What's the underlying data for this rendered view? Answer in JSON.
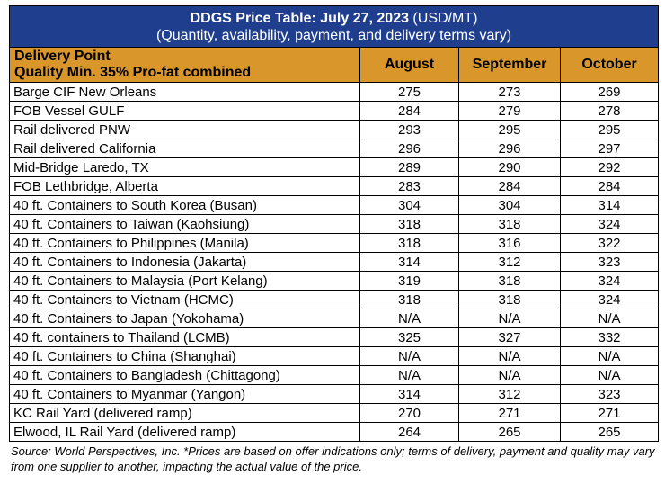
{
  "title": {
    "main": "DDGS Price Table: July 27, 2023",
    "unit": " (USD/MT)",
    "subtitle": "(Quantity, availability, payment, and delivery terms vary)"
  },
  "header": {
    "delivery_point": "Delivery Point",
    "quality": "Quality Min. 35% Pro-fat combined",
    "months": [
      "August",
      "September",
      "October"
    ]
  },
  "rows": [
    {
      "name": "Barge CIF New Orleans",
      "v": [
        "275",
        "273",
        "269"
      ]
    },
    {
      "name": "FOB Vessel GULF",
      "v": [
        "284",
        "279",
        "278"
      ]
    },
    {
      "name": "Rail delivered PNW",
      "v": [
        "293",
        "295",
        "295"
      ]
    },
    {
      "name": "Rail delivered California",
      "v": [
        "296",
        "296",
        "297"
      ]
    },
    {
      "name": "Mid-Bridge Laredo, TX",
      "v": [
        "289",
        "290",
        "292"
      ]
    },
    {
      "name": "FOB Lethbridge, Alberta",
      "v": [
        "283",
        "284",
        "284"
      ]
    },
    {
      "name": "40 ft. Containers to South Korea (Busan)",
      "v": [
        "304",
        "304",
        "314"
      ]
    },
    {
      "name": "40 ft. Containers to Taiwan (Kaohsiung)",
      "v": [
        "318",
        "318",
        "324"
      ]
    },
    {
      "name": "40 ft. Containers to Philippines (Manila)",
      "v": [
        "318",
        "316",
        "322"
      ]
    },
    {
      "name": "40 ft. Containers to Indonesia (Jakarta)",
      "v": [
        "314",
        "312",
        "323"
      ]
    },
    {
      "name": "40 ft. Containers to Malaysia (Port Kelang)",
      "v": [
        "319",
        "318",
        "324"
      ]
    },
    {
      "name": "40 ft. Containers to Vietnam (HCMC)",
      "v": [
        "318",
        "318",
        "324"
      ]
    },
    {
      "name": "40 ft. Containers to Japan (Yokohama)",
      "v": [
        "N/A",
        "N/A",
        "N/A"
      ]
    },
    {
      "name": "40 ft. containers to Thailand (LCMB)",
      "v": [
        "325",
        "327",
        "332"
      ]
    },
    {
      "name": "40 ft. Containers to China (Shanghai)",
      "v": [
        "N/A",
        "N/A",
        "N/A"
      ]
    },
    {
      "name": "40 ft. Containers to Bangladesh (Chittagong)",
      "v": [
        "N/A",
        "N/A",
        "N/A"
      ]
    },
    {
      "name": "40 ft. Containers to Myanmar (Yangon)",
      "v": [
        "314",
        "312",
        "323"
      ]
    },
    {
      "name": "KC Rail Yard (delivered ramp)",
      "v": [
        "270",
        "271",
        "271"
      ]
    },
    {
      "name": "Elwood, IL Rail Yard (delivered ramp)",
      "v": [
        "264",
        "265",
        "265"
      ]
    }
  ],
  "source": "Source: World Perspectives, Inc. *Prices are based on offer indications only; terms of delivery, payment and quality may vary from one supplier to another, impacting the actual value of the price.",
  "colors": {
    "title_bg": "#1f3f8e",
    "header_bg": "#d9962b"
  }
}
